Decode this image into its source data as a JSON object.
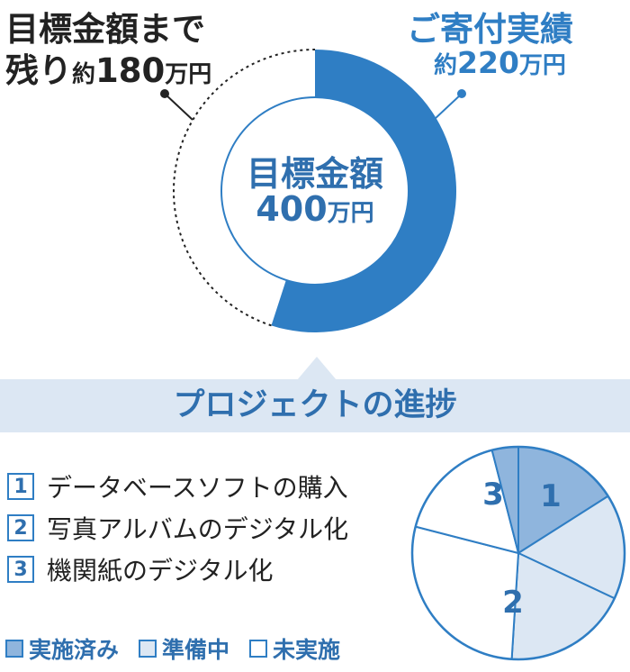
{
  "chart_data": [
    {
      "type": "donut",
      "title": "目標金額",
      "total": {
        "value": 400,
        "unit": "万円",
        "label": "400"
      },
      "slices": [
        {
          "name": "ご寄付実績",
          "value": 220,
          "prefix": "約",
          "label": "220",
          "unit": "万円",
          "style": "solid",
          "color": "#2f7ec4"
        },
        {
          "name": "目標金額まで残り",
          "value": 180,
          "prefix": "約",
          "label": "180",
          "unit": "万円",
          "style": "dashed-outline",
          "color": "#222222"
        }
      ],
      "remain_line1": "目標金額まで",
      "remain_line2_main": "残り",
      "remain_line2_small": "約",
      "remain_line2_value": "180",
      "remain_line2_unit": "万円",
      "actual_prefix": "約",
      "actual_value": "220",
      "actual_unit": "万円"
    },
    {
      "type": "pie",
      "title": "プロジェクトの進捗",
      "slices": [
        {
          "id": "1",
          "label": "1",
          "status": "実施済み",
          "percent": 16
        },
        {
          "id": "1b",
          "label": "",
          "status": "準備中",
          "percent": 16
        },
        {
          "id": "2",
          "label": "2",
          "status": "準備中",
          "percent": 19
        },
        {
          "id": "2b",
          "label": "",
          "status": "未実施",
          "percent": 28
        },
        {
          "id": "3",
          "label": "3",
          "status": "未実施",
          "percent": 17
        },
        {
          "id": "3b",
          "label": "",
          "status": "実施済み",
          "percent": 4
        }
      ]
    }
  ],
  "tasks": [
    {
      "num": "1",
      "label": "データベースソフトの購入"
    },
    {
      "num": "2",
      "label": "写真アルバムのデジタル化"
    },
    {
      "num": "3",
      "label": "機関紙のデジタル化"
    }
  ],
  "legend": [
    {
      "label": "実施済み",
      "color": "#8fb5dd"
    },
    {
      "label": "準備中",
      "color": "#dce7f3"
    },
    {
      "label": "未実施",
      "color": "#ffffff"
    }
  ],
  "colors": {
    "accent": "#2f7ec4",
    "accent_dark": "#2f6fae",
    "done": "#8fb5dd",
    "prep": "#dce7f3",
    "none": "#ffffff"
  }
}
